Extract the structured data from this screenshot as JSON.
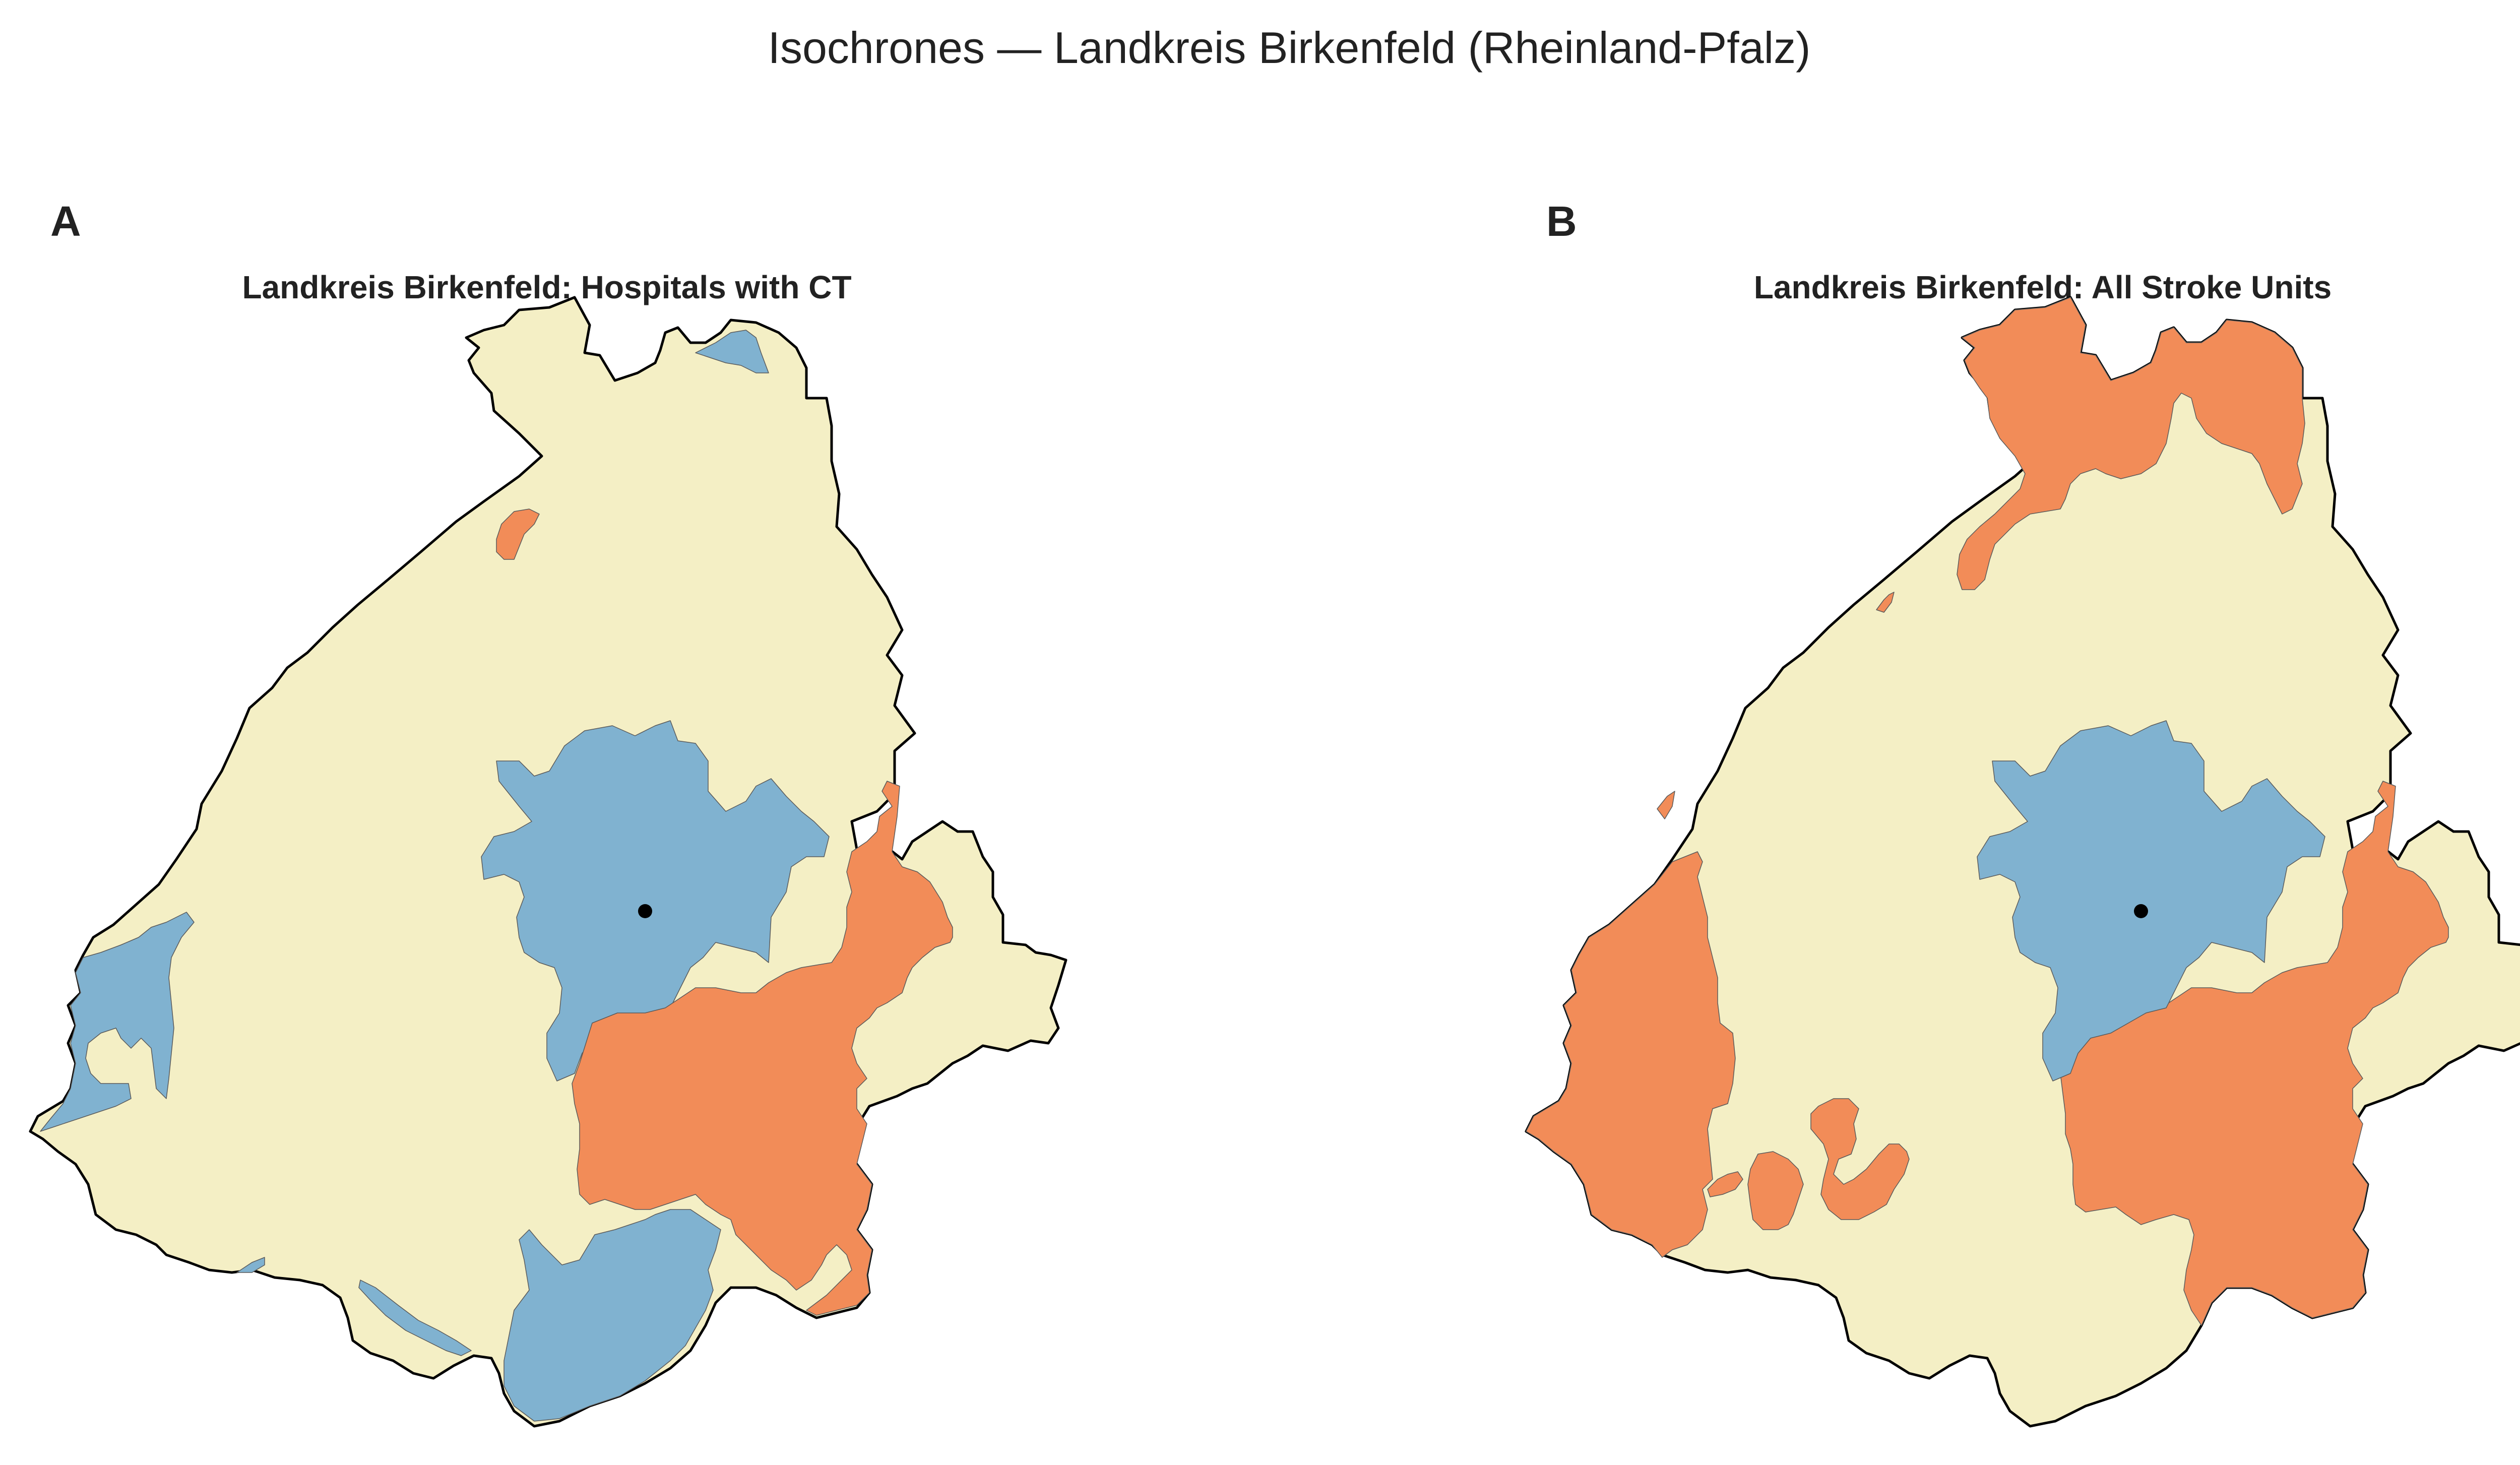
{
  "figure": {
    "title": "Isochrones — Landkreis Birkenfeld (Rheinland-Pfalz)"
  },
  "colors": {
    "region_fill": "#f4efc5",
    "region_border": "#000000",
    "near_zone": "#80b2d0",
    "far_zone": "#f28c58",
    "facility_point": "#000000"
  },
  "panels": [
    {
      "label": "A",
      "title": "Landkreis Birkenfeld: Hospitals with CT"
    },
    {
      "label": "B",
      "title": "Landkreis Birkenfeld: All Stroke Units"
    }
  ]
}
